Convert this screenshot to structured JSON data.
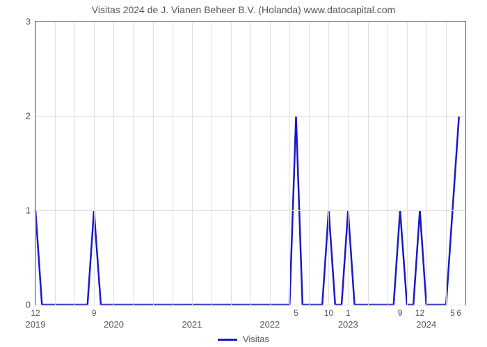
{
  "chart": {
    "type": "line",
    "title": "Visitas 2024 de J. Vianen Beheer B.V. (Holanda) www.datocapital.com",
    "title_fontsize": 14,
    "title_color": "#555555",
    "background_color": "#ffffff",
    "plot_border_color": "#636363",
    "grid_color": "#e0e0e0",
    "grid_on": true,
    "line_color": "#1919c8",
    "line_width": 2.5,
    "ylim": [
      0,
      3
    ],
    "ytick_step": 1,
    "yticks": [
      0,
      1,
      2,
      3
    ],
    "x_year_ticks": [
      {
        "label": "2019",
        "u": 0.0
      },
      {
        "label": "2020",
        "u": 0.182
      },
      {
        "label": "2021",
        "u": 0.364
      },
      {
        "label": "2022",
        "u": 0.545
      },
      {
        "label": "2023",
        "u": 0.727
      },
      {
        "label": "2024",
        "u": 0.909
      }
    ],
    "minor_vgrid_u": [
      0.0455,
      0.0909,
      0.1364,
      0.2273,
      0.2727,
      0.3182,
      0.4091,
      0.4545,
      0.5,
      0.5909,
      0.6364,
      0.6818,
      0.7727,
      0.8182,
      0.8636,
      0.9545
    ],
    "x_point_labels": [
      {
        "label": "12",
        "u": 0.0
      },
      {
        "label": "9",
        "u": 0.136
      },
      {
        "label": "5",
        "u": 0.606
      },
      {
        "label": "10",
        "u": 0.682
      },
      {
        "label": "1",
        "u": 0.727
      },
      {
        "label": "9",
        "u": 0.848
      },
      {
        "label": "12",
        "u": 0.894
      },
      {
        "label": "5",
        "u": 0.97
      },
      {
        "label": "6",
        "u": 0.985
      }
    ],
    "series_uv": [
      [
        0.0,
        1
      ],
      [
        0.015,
        0
      ],
      [
        0.121,
        0
      ],
      [
        0.136,
        1
      ],
      [
        0.152,
        0
      ],
      [
        0.591,
        0
      ],
      [
        0.606,
        2
      ],
      [
        0.621,
        0
      ],
      [
        0.667,
        0
      ],
      [
        0.682,
        1
      ],
      [
        0.697,
        0
      ],
      [
        0.712,
        0
      ],
      [
        0.727,
        1
      ],
      [
        0.742,
        0
      ],
      [
        0.833,
        0
      ],
      [
        0.848,
        1
      ],
      [
        0.864,
        0
      ],
      [
        0.879,
        0
      ],
      [
        0.894,
        1
      ],
      [
        0.909,
        0
      ],
      [
        0.955,
        0
      ],
      [
        0.97,
        1
      ],
      [
        0.985,
        2
      ]
    ],
    "legend_label": "Visitas"
  }
}
